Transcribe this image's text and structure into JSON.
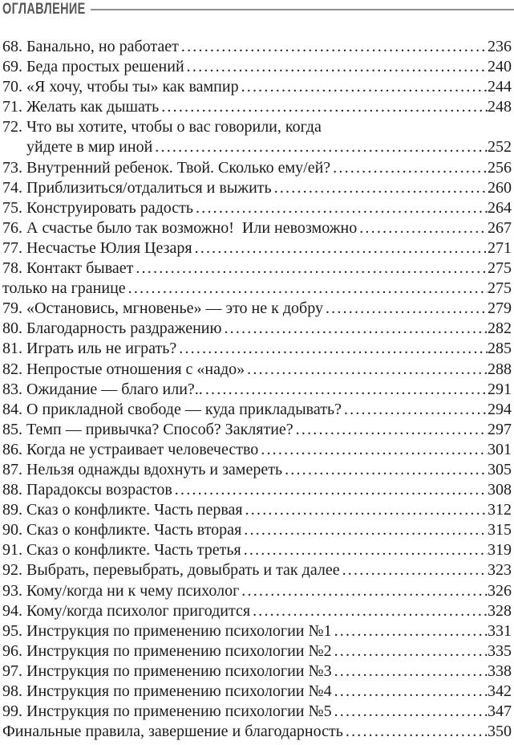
{
  "page": {
    "background": "#ffffff",
    "text_color": "#1b1b1b"
  },
  "header": {
    "title": "ОГЛАВЛЕНИЕ",
    "title_color": "#55565a",
    "rule_color": "#8d8e90"
  },
  "toc": {
    "rows": [
      {
        "num": "68.",
        "title": "Банально, но работает",
        "page": "236"
      },
      {
        "num": "69.",
        "title": "Беда простых решений",
        "page": "240"
      },
      {
        "num": "70.",
        "title": "«Я хочу, чтобы ты» как вампир",
        "page": "244"
      },
      {
        "num": "71.",
        "title": "Желать как дышать",
        "page": "248"
      },
      {
        "num": "72.",
        "title": "Что вы хотите, чтобы о вас говорили, когда",
        "page": "",
        "dots": false
      },
      {
        "num": "",
        "indent": true,
        "title": "уйдете в мир иной",
        "page": "252"
      },
      {
        "num": "73.",
        "title": "Внутренний ребенок. Твой. Сколько ему/ей?",
        "page": "256"
      },
      {
        "num": "74.",
        "title": "Приблизиться/отдалиться и выжить",
        "page": "260"
      },
      {
        "num": "75.",
        "title": "Конструировать радость",
        "page": "264"
      },
      {
        "num": "76.",
        "title": "А счастье было так возможно!  Или невозможно",
        "page": "267"
      },
      {
        "num": "77.",
        "title": "Несчастье Юлия Цезаря",
        "page": "271"
      },
      {
        "num": "78.",
        "title": "Контакт бывает",
        "page": "275"
      },
      {
        "num": "",
        "title": "только на границе",
        "page": "275"
      },
      {
        "num": "79.",
        "title": "«Остановись, мгновенье» — это не к добру",
        "page": "279"
      },
      {
        "num": "80.",
        "title": "Благодарность раздражению",
        "page": "282"
      },
      {
        "num": "81.",
        "title": "Играть иль не играть?",
        "page": "285"
      },
      {
        "num": "82.",
        "title": "Непростые отношения с «надо»",
        "page": "288"
      },
      {
        "num": "83.",
        "title": "Ожидание — благо или?..",
        "page": "291"
      },
      {
        "num": "84.",
        "title": "О прикладной свободе — куда прикладывать?",
        "page": "294"
      },
      {
        "num": "85.",
        "title": "Темп — привычка? Способ? Заклятие?",
        "page": "297"
      },
      {
        "num": "86.",
        "title": "Когда не устраивает человечество",
        "page": "301"
      },
      {
        "num": "87.",
        "title": "Нельзя однажды вдохнуть и замереть",
        "page": "305"
      },
      {
        "num": "88.",
        "title": "Парадоксы возрастов",
        "page": "308"
      },
      {
        "num": "89.",
        "title": "Сказ о конфликте. Часть первая",
        "page": "312"
      },
      {
        "num": "90.",
        "title": "Сказ о конфликте. Часть вторая",
        "page": "315"
      },
      {
        "num": "91.",
        "title": "Сказ о конфликте. Часть третья",
        "page": "319"
      },
      {
        "num": "92.",
        "title": "Выбрать, перевыбрать, довыбрать и так далее",
        "page": "323"
      },
      {
        "num": "93.",
        "title": "Кому/когда ни к чему психолог",
        "page": "326"
      },
      {
        "num": "94.",
        "title": "Кому/когда психолог пригодится",
        "page": "328"
      },
      {
        "num": "95.",
        "title": "Инструкция по применению психологии №1",
        "page": "331"
      },
      {
        "num": "96.",
        "title": "Инструкция по применению психологии №2",
        "page": "335"
      },
      {
        "num": "97.",
        "title": "Инструкция по применению психологии №3",
        "page": "338"
      },
      {
        "num": "98.",
        "title": "Инструкция по применению психологии №4",
        "page": "342"
      },
      {
        "num": "99.",
        "title": "Инструкция по применению психологии №5",
        "page": "347"
      },
      {
        "num": "",
        "title": "Финальные правила, завершение и благодарность",
        "page": "350"
      }
    ]
  }
}
